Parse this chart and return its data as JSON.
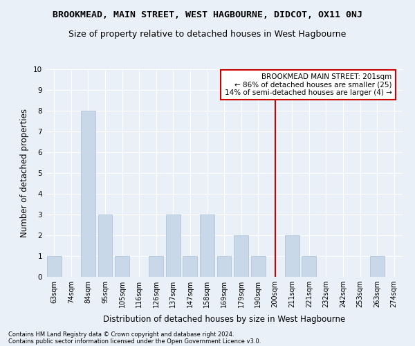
{
  "title": "BROOKMEAD, MAIN STREET, WEST HAGBOURNE, DIDCOT, OX11 0NJ",
  "subtitle": "Size of property relative to detached houses in West Hagbourne",
  "xlabel": "Distribution of detached houses by size in West Hagbourne",
  "ylabel": "Number of detached properties",
  "categories": [
    "63sqm",
    "74sqm",
    "84sqm",
    "95sqm",
    "105sqm",
    "116sqm",
    "126sqm",
    "137sqm",
    "147sqm",
    "158sqm",
    "169sqm",
    "179sqm",
    "190sqm",
    "200sqm",
    "211sqm",
    "221sqm",
    "232sqm",
    "242sqm",
    "253sqm",
    "263sqm",
    "274sqm"
  ],
  "values": [
    1,
    0,
    8,
    3,
    1,
    0,
    1,
    3,
    1,
    3,
    1,
    2,
    1,
    0,
    2,
    1,
    0,
    0,
    0,
    1,
    0
  ],
  "bar_color": "#c8d8e8",
  "bar_edgecolor": "#a8c0d4",
  "vline_x_index": 13,
  "vline_color": "#cc0000",
  "ylim": [
    0,
    10
  ],
  "yticks": [
    0,
    1,
    2,
    3,
    4,
    5,
    6,
    7,
    8,
    9,
    10
  ],
  "annotation_line1": "BROOKMEAD MAIN STREET: 201sqm",
  "annotation_line2": "← 86% of detached houses are smaller (25)",
  "annotation_line3": "14% of semi-detached houses are larger (4) →",
  "annotation_box_color": "#ffffff",
  "annotation_box_edgecolor": "#cc0000",
  "footer1": "Contains HM Land Registry data © Crown copyright and database right 2024.",
  "footer2": "Contains public sector information licensed under the Open Government Licence v3.0.",
  "background_color": "#eaf0f8",
  "grid_color": "#ffffff",
  "title_fontsize": 9.5,
  "subtitle_fontsize": 9,
  "tick_fontsize": 7,
  "ylabel_fontsize": 8.5,
  "xlabel_fontsize": 8.5,
  "annotation_fontsize": 7.5,
  "footer_fontsize": 6
}
